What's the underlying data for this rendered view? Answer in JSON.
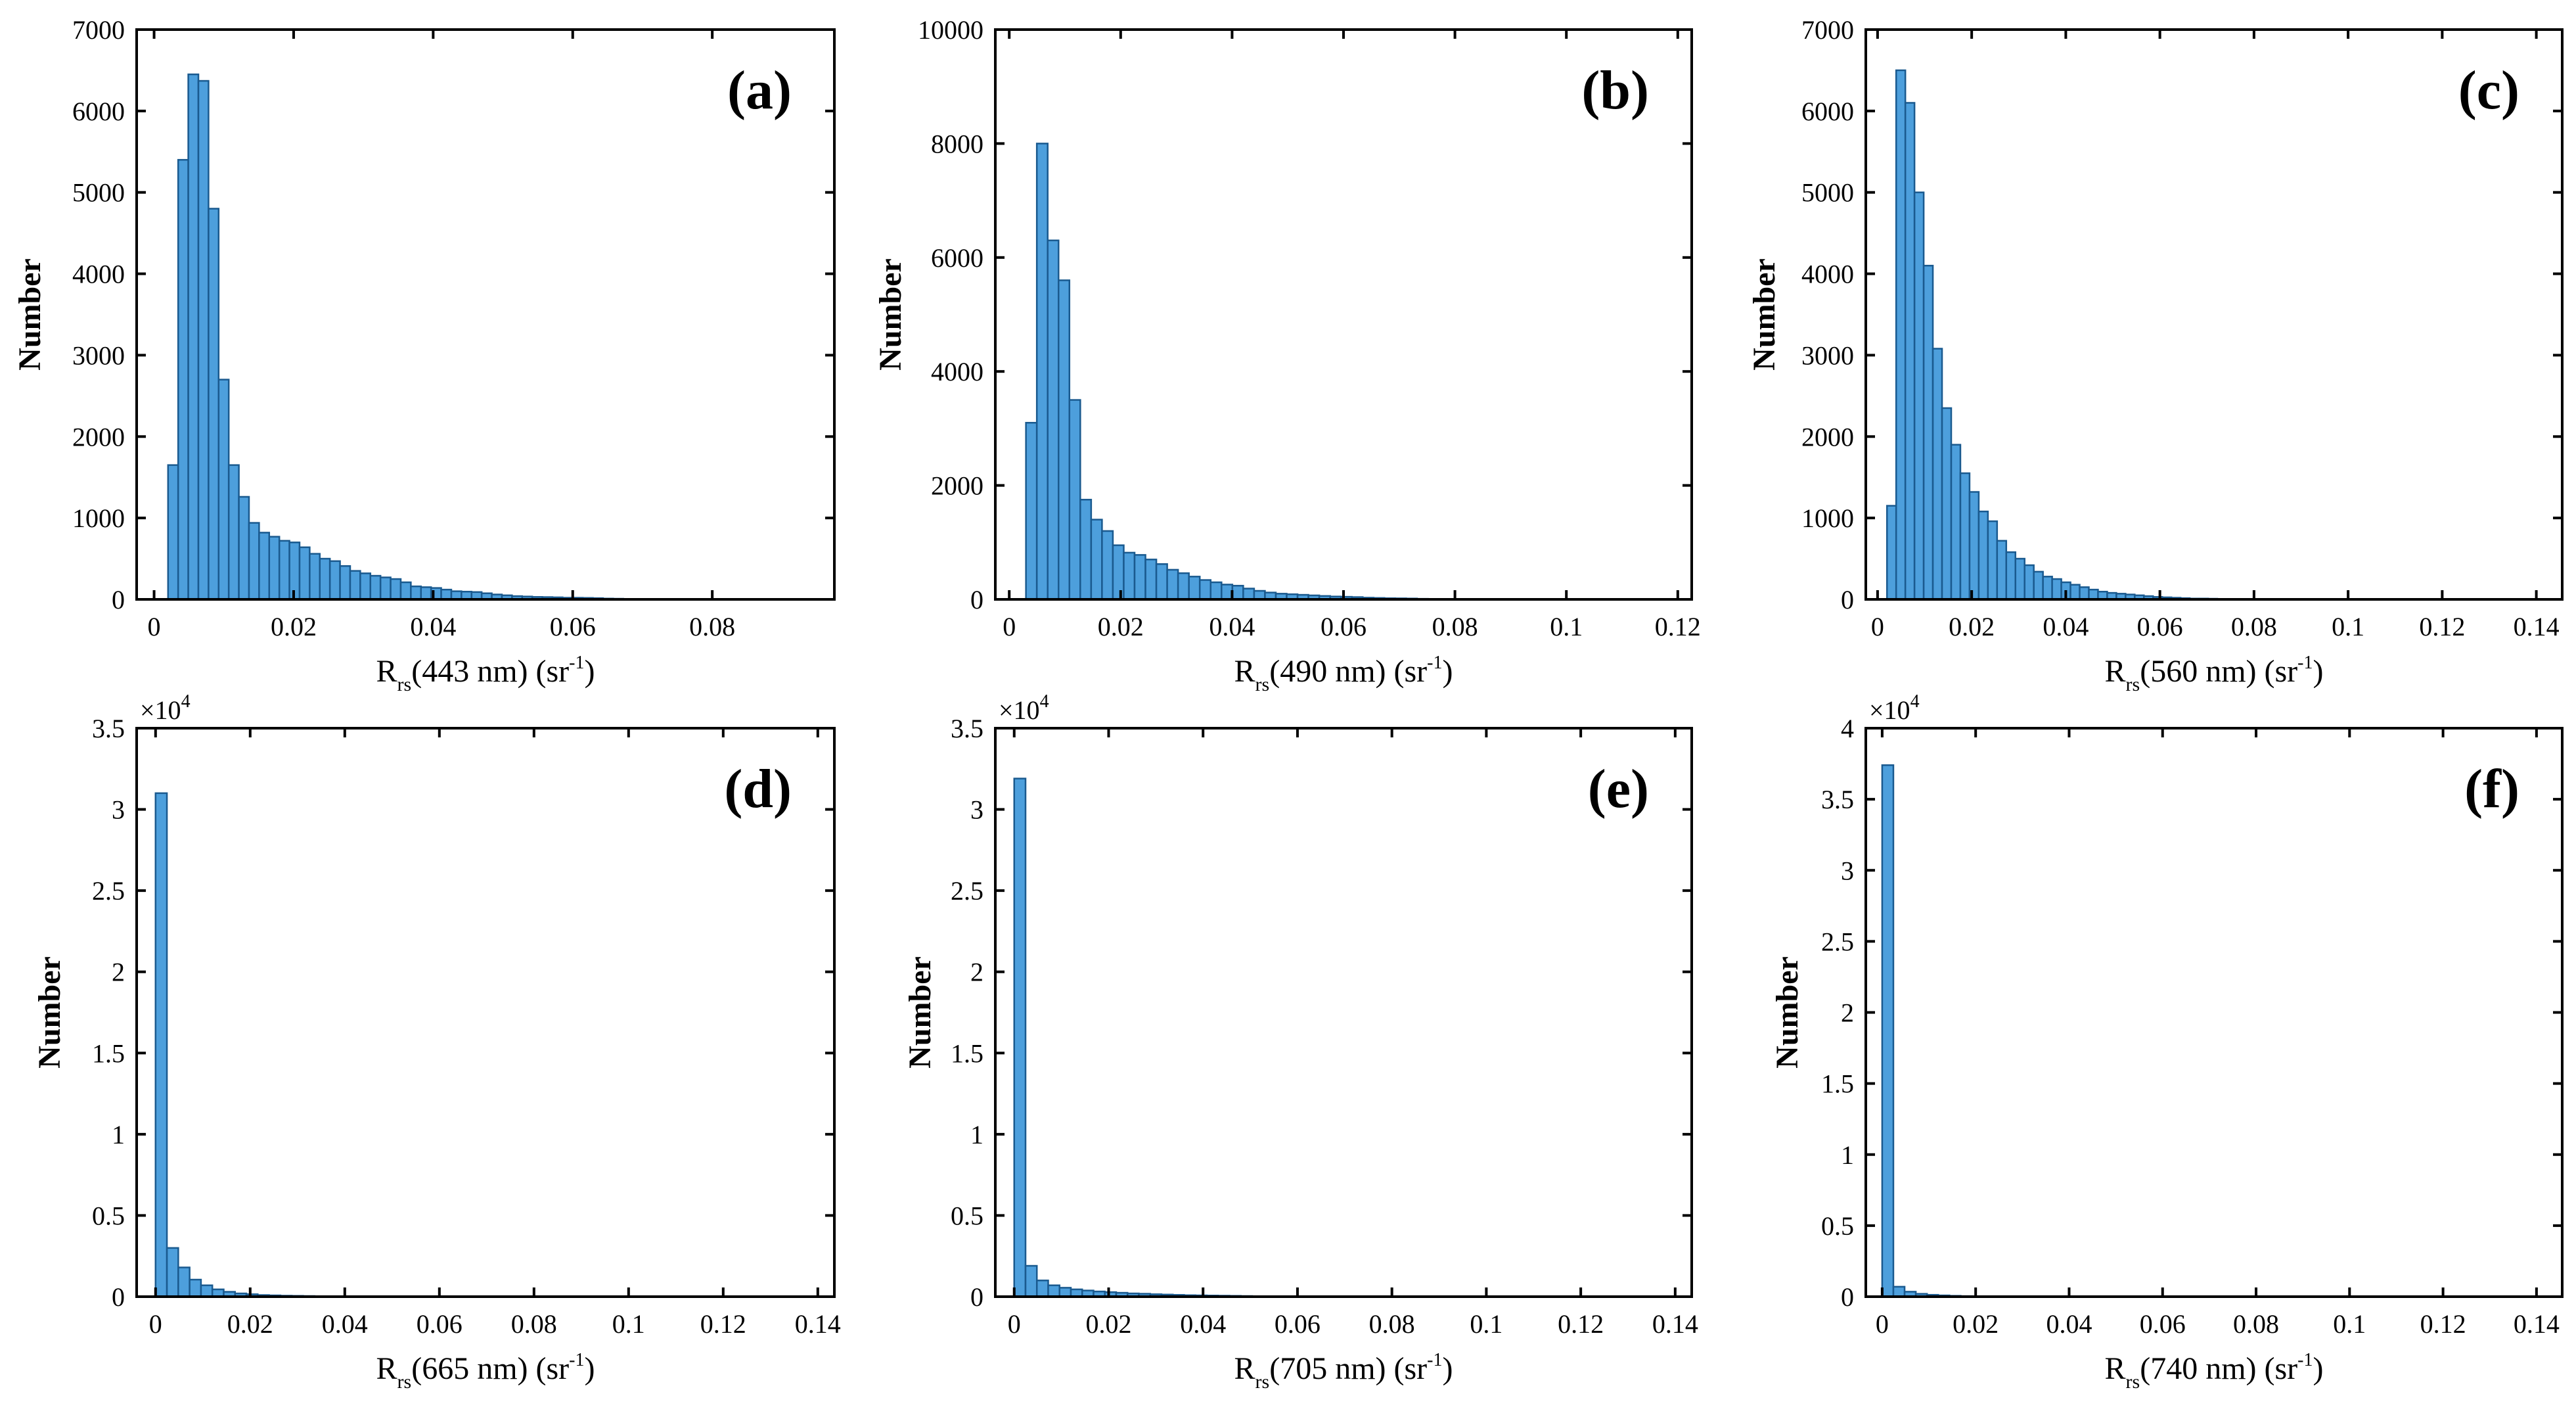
{
  "chart_data": [
    {
      "type": "bar",
      "panel_label": "(a)",
      "xlabel_prefix": "R",
      "xlabel_sub": "rs",
      "xlabel_text": "(443 nm) (sr",
      "xlabel_sup": "-1",
      "xlabel_end": ")",
      "ylabel": "Number",
      "xlim": [
        -0.0025,
        0.0975
      ],
      "ylim": [
        0,
        7000
      ],
      "xticks": [
        0,
        0.02,
        0.04,
        0.06,
        0.08
      ],
      "xtick_labels": [
        "0",
        "0.02",
        "0.04",
        "0.06",
        "0.08"
      ],
      "yticks": [
        0,
        1000,
        2000,
        3000,
        4000,
        5000,
        6000,
        7000
      ],
      "ytick_labels": [
        "0",
        "1000",
        "2000",
        "3000",
        "4000",
        "5000",
        "6000",
        "7000"
      ],
      "multiplier": "",
      "multiplier_exp": "",
      "bin_start": 0.002,
      "bin_width": 0.00145,
      "values": [
        1650,
        5400,
        6450,
        6370,
        4800,
        2700,
        1650,
        1260,
        940,
        820,
        770,
        720,
        700,
        640,
        560,
        500,
        470,
        410,
        350,
        320,
        290,
        270,
        250,
        210,
        160,
        150,
        140,
        120,
        100,
        95,
        90,
        75,
        60,
        50,
        40,
        35,
        30,
        28,
        25,
        20,
        20,
        18,
        15,
        10,
        8,
        5,
        0,
        0
      ]
    },
    {
      "type": "bar",
      "panel_label": "(b)",
      "xlabel_prefix": "R",
      "xlabel_sub": "rs",
      "xlabel_text": "(490 nm) (sr",
      "xlabel_sup": "-1",
      "xlabel_end": ")",
      "ylabel": "Number",
      "xlim": [
        -0.0025,
        0.1225
      ],
      "ylim": [
        0,
        10000
      ],
      "xticks": [
        0,
        0.02,
        0.04,
        0.06,
        0.08,
        0.1,
        0.12
      ],
      "xtick_labels": [
        "0",
        "0.02",
        "0.04",
        "0.06",
        "0.08",
        "0.1",
        "0.12"
      ],
      "yticks": [
        0,
        2000,
        4000,
        6000,
        8000,
        10000
      ],
      "ytick_labels": [
        "0",
        "2000",
        "4000",
        "6000",
        "8000",
        "10000"
      ],
      "multiplier": "",
      "multiplier_exp": "",
      "bin_start": 0.003,
      "bin_width": 0.00195,
      "values": [
        3100,
        8000,
        6300,
        5600,
        3500,
        1750,
        1400,
        1200,
        950,
        820,
        780,
        700,
        620,
        520,
        460,
        400,
        340,
        300,
        260,
        240,
        190,
        150,
        120,
        100,
        90,
        80,
        70,
        60,
        50,
        45,
        40,
        30,
        25,
        20,
        18,
        15,
        10,
        8,
        5,
        3,
        0
      ]
    },
    {
      "type": "bar",
      "panel_label": "(c)",
      "xlabel_prefix": "R",
      "xlabel_sub": "rs",
      "xlabel_text": "(560 nm) (sr",
      "xlabel_sup": "-1",
      "xlabel_end": ")",
      "ylabel": "Number",
      "xlim": [
        -0.0025,
        0.1455
      ],
      "ylim": [
        0,
        7000
      ],
      "xticks": [
        0,
        0.02,
        0.04,
        0.06,
        0.08,
        0.1,
        0.12,
        0.14
      ],
      "xtick_labels": [
        "0",
        "0.02",
        "0.04",
        "0.06",
        "0.08",
        "0.1",
        "0.12",
        "0.14"
      ],
      "yticks": [
        0,
        1000,
        2000,
        3000,
        4000,
        5000,
        6000,
        7000
      ],
      "ytick_labels": [
        "0",
        "1000",
        "2000",
        "3000",
        "4000",
        "5000",
        "6000",
        "7000"
      ],
      "multiplier": "",
      "multiplier_exp": "",
      "bin_start": 0.002,
      "bin_width": 0.00195,
      "values": [
        1150,
        6500,
        6100,
        5000,
        4100,
        3080,
        2350,
        1900,
        1550,
        1320,
        1080,
        960,
        720,
        580,
        500,
        420,
        340,
        280,
        250,
        210,
        180,
        150,
        120,
        95,
        80,
        70,
        60,
        50,
        40,
        30,
        25,
        20,
        15,
        10,
        10,
        8,
        5,
        5,
        3,
        0,
        0
      ]
    },
    {
      "type": "bar",
      "panel_label": "(d)",
      "xlabel_prefix": "R",
      "xlabel_sub": "rs",
      "xlabel_text": "(665 nm) (sr",
      "xlabel_sup": "-1",
      "xlabel_end": ")",
      "ylabel": "Number",
      "xlim": [
        -0.004,
        0.1435
      ],
      "ylim": [
        0,
        35000
      ],
      "xticks": [
        0,
        0.02,
        0.04,
        0.06,
        0.08,
        0.1,
        0.12,
        0.14
      ],
      "xtick_labels": [
        "0",
        "0.02",
        "0.04",
        "0.06",
        "0.08",
        "0.1",
        "0.12",
        "0.14"
      ],
      "yticks": [
        0,
        5000,
        10000,
        15000,
        20000,
        25000,
        30000,
        35000
      ],
      "ytick_labels": [
        "0",
        "0.5",
        "1",
        "1.5",
        "2",
        "2.5",
        "3",
        "3.5"
      ],
      "multiplier": "×10",
      "multiplier_exp": "4",
      "bin_start": 0,
      "bin_width": 0.0024,
      "values": [
        31000,
        3000,
        1800,
        1050,
        700,
        450,
        300,
        200,
        150,
        100,
        80,
        60,
        50,
        40,
        30,
        20,
        15,
        10,
        8,
        5,
        3,
        0
      ]
    },
    {
      "type": "bar",
      "panel_label": "(e)",
      "xlabel_prefix": "R",
      "xlabel_sub": "rs",
      "xlabel_text": "(705 nm) (sr",
      "xlabel_sup": "-1",
      "xlabel_end": ")",
      "ylabel": "Number",
      "xlim": [
        -0.004,
        0.1435
      ],
      "ylim": [
        0,
        35000
      ],
      "xticks": [
        0,
        0.02,
        0.04,
        0.06,
        0.08,
        0.1,
        0.12,
        0.14
      ],
      "xtick_labels": [
        "0",
        "0.02",
        "0.04",
        "0.06",
        "0.08",
        "0.1",
        "0.12",
        "0.14"
      ],
      "yticks": [
        0,
        5000,
        10000,
        15000,
        20000,
        25000,
        30000,
        35000
      ],
      "ytick_labels": [
        "0",
        "0.5",
        "1",
        "1.5",
        "2",
        "2.5",
        "3",
        "3.5"
      ],
      "multiplier": "×10",
      "multiplier_exp": "4",
      "bin_start": 0,
      "bin_width": 0.0024,
      "values": [
        31900,
        1900,
        1000,
        700,
        550,
        450,
        380,
        320,
        280,
        240,
        200,
        180,
        150,
        130,
        110,
        90,
        80,
        70,
        60,
        50,
        40,
        30,
        25,
        20,
        15,
        10,
        5,
        3,
        0
      ]
    },
    {
      "type": "bar",
      "panel_label": "(f)",
      "xlabel_prefix": "R",
      "xlabel_sub": "rs",
      "xlabel_text": "(740 nm) (sr",
      "xlabel_sup": "-1",
      "xlabel_end": ")",
      "ylabel": "Number",
      "xlim": [
        -0.0035,
        0.1455
      ],
      "ylim": [
        0,
        40000
      ],
      "xticks": [
        0,
        0.02,
        0.04,
        0.06,
        0.08,
        0.1,
        0.12,
        0.14
      ],
      "xtick_labels": [
        "0",
        "0.02",
        "0.04",
        "0.06",
        "0.08",
        "0.1",
        "0.12",
        "0.14"
      ],
      "yticks": [
        0,
        5000,
        10000,
        15000,
        20000,
        25000,
        30000,
        35000,
        40000
      ],
      "ytick_labels": [
        "0",
        "0.5",
        "1",
        "1.5",
        "2",
        "2.5",
        "3",
        "3.5",
        "4"
      ],
      "multiplier": "×10",
      "multiplier_exp": "4",
      "bin_start": 0,
      "bin_width": 0.0024,
      "values": [
        37400,
        700,
        350,
        200,
        130,
        90,
        60,
        40,
        30,
        20,
        10,
        5,
        0
      ]
    }
  ],
  "colors": {
    "bar_fill": "#4d9fdc",
    "bar_edge": "#1a5a8f",
    "axis": "#000000"
  }
}
